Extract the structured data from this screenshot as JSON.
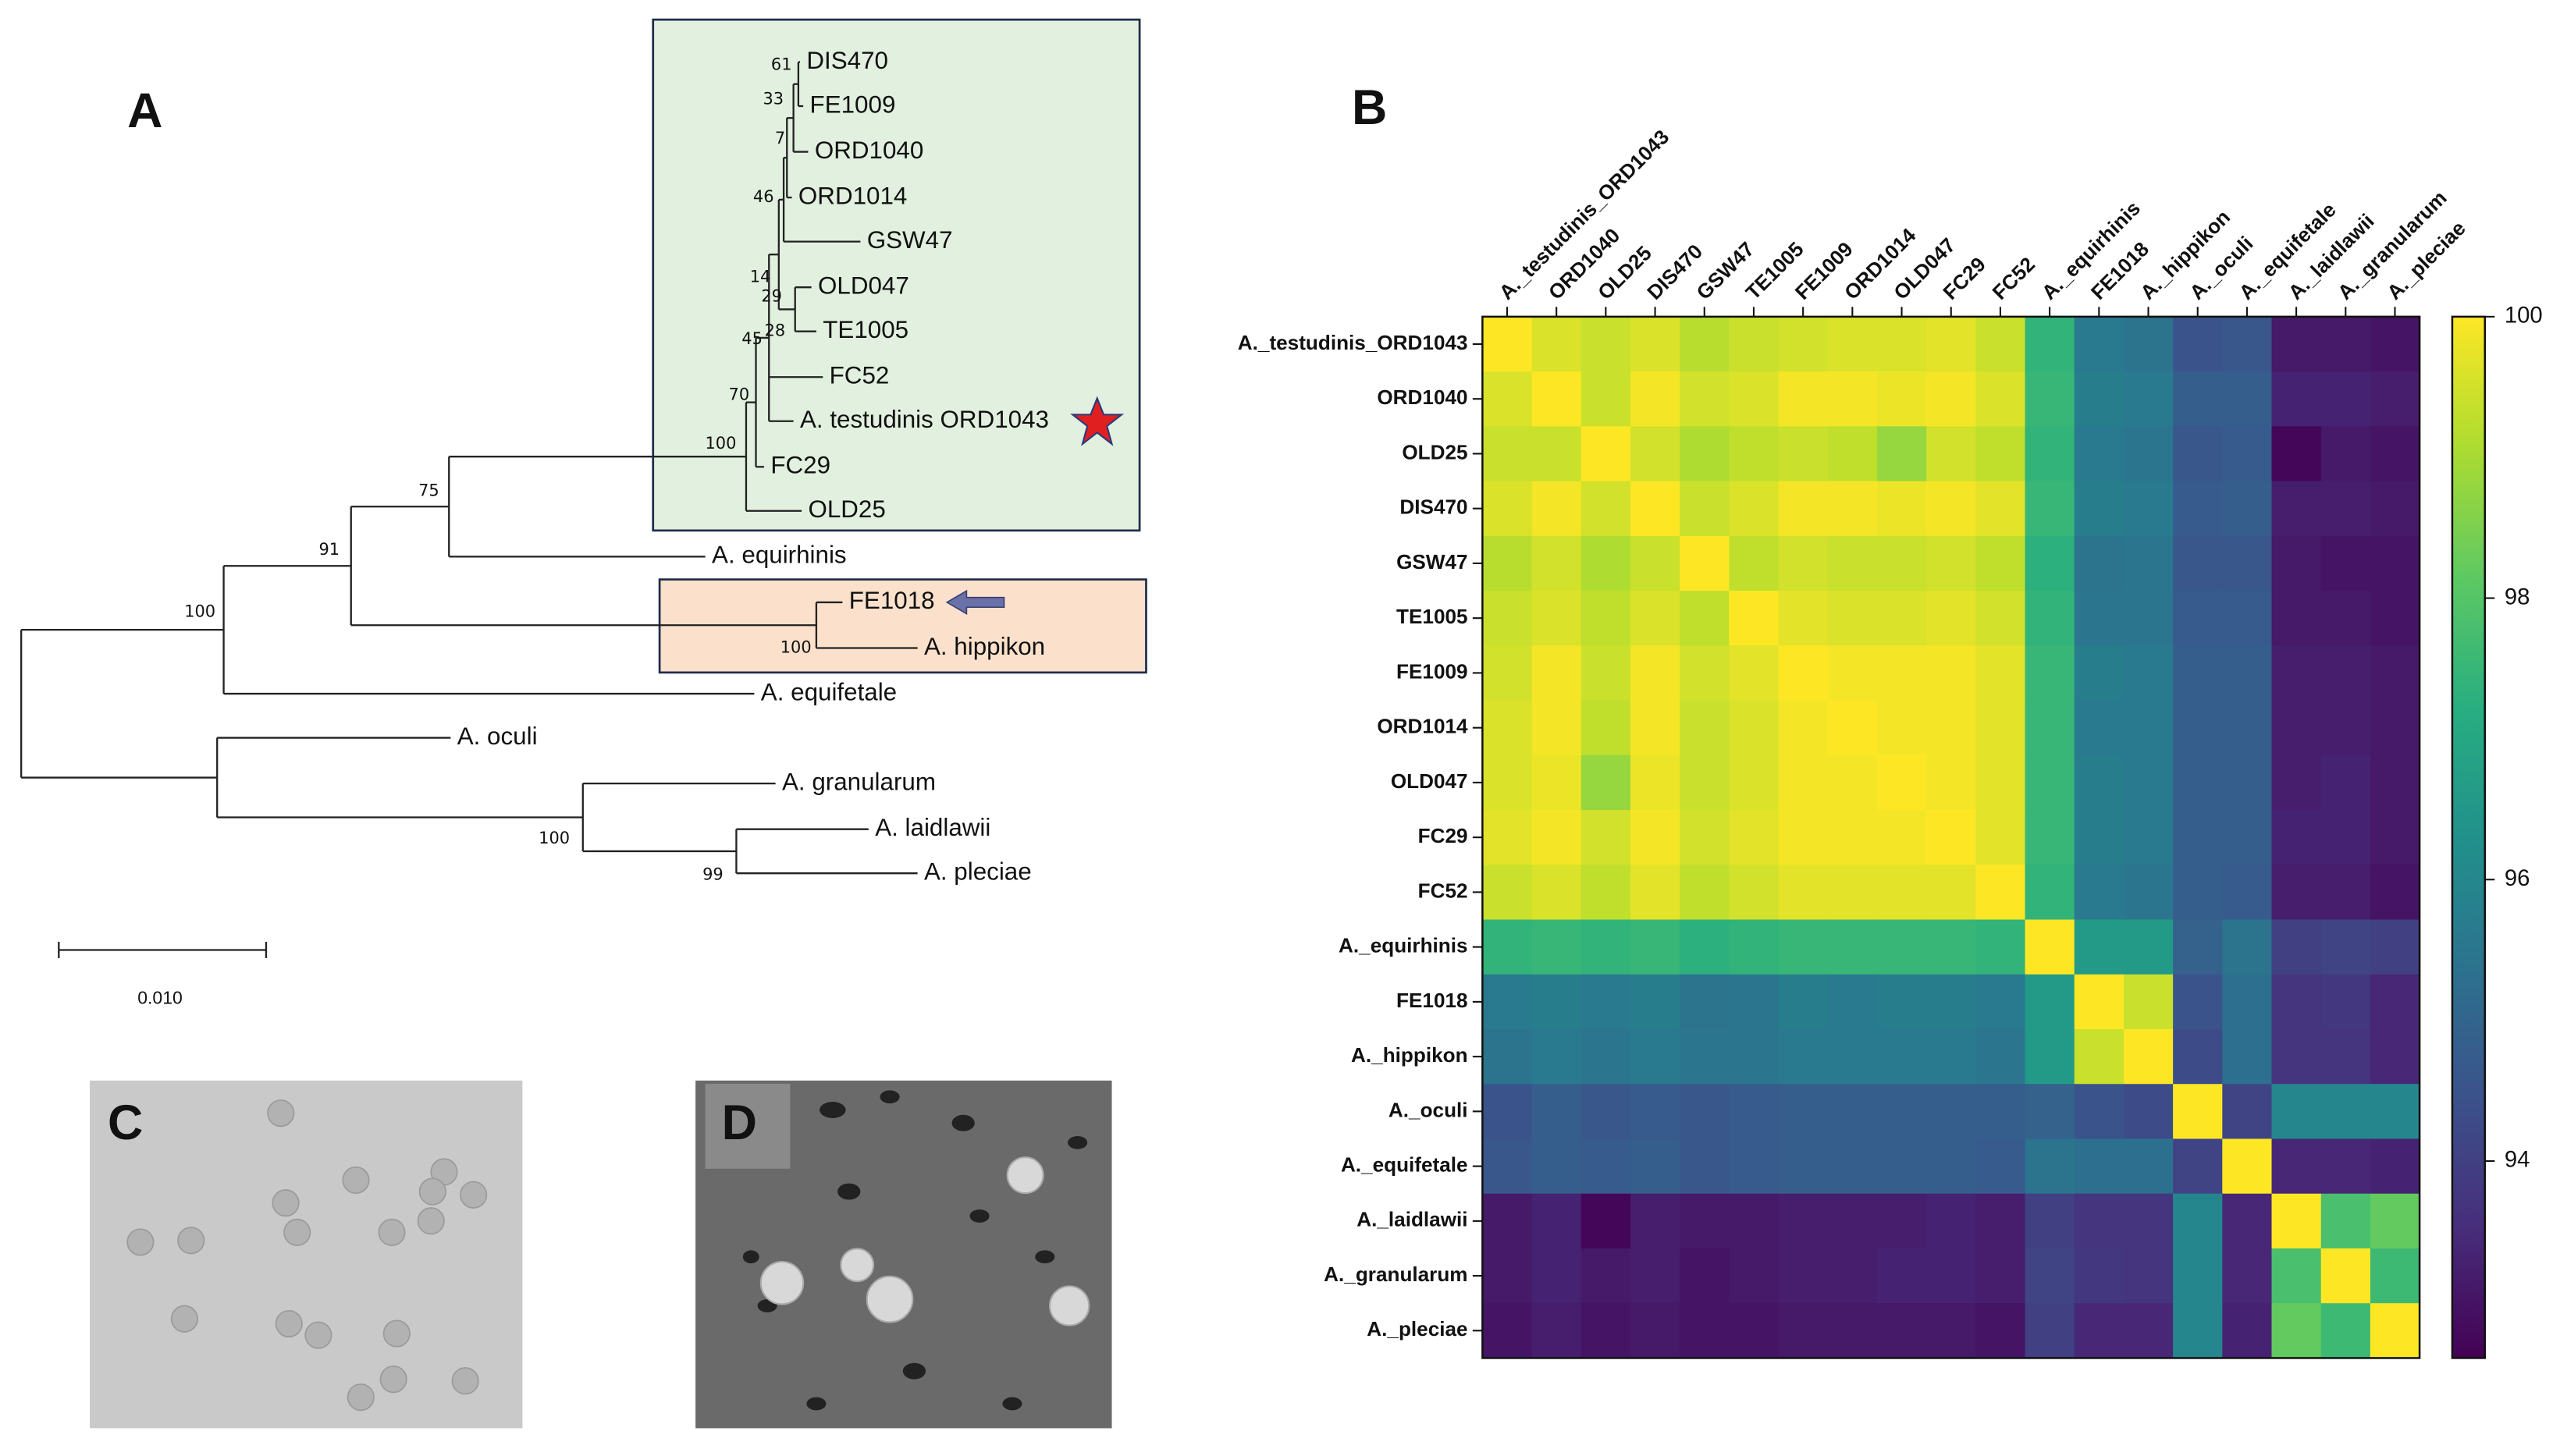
{
  "panel_labels": [
    "A",
    "B",
    "C",
    "D"
  ],
  "tree": {
    "leaves": [
      "DIS470",
      "FE1009",
      "ORD1040",
      "ORD1014",
      "GSW47",
      "OLD047",
      "TE1005",
      "FC52",
      "A. testudinis ORD1043",
      "FC29",
      "OLD25",
      "A. equirhinis",
      "FE1018",
      "A. hippikon",
      "A. equifetale",
      "A. oculi",
      "A. granularum",
      "A. laidlawii",
      "A. pleciae"
    ],
    "bootstrap": [
      61,
      33,
      7,
      46,
      14,
      29,
      28,
      45,
      70,
      100,
      75,
      91,
      100,
      100,
      100,
      99
    ],
    "scale_bar": "0.010"
  },
  "chart_data": {
    "type": "heatmap",
    "rows": [
      "A._testudinis_ORD1043",
      "ORD1040",
      "OLD25",
      "DIS470",
      "GSW47",
      "TE1005",
      "FE1009",
      "ORD1014",
      "OLD047",
      "FC29",
      "FC52",
      "A._equirhinis",
      "FE1018",
      "A._hippikon",
      "A._oculi",
      "A._equifetale",
      "A._laidlawii",
      "A._granularum",
      "A._pleciae"
    ],
    "columns": [
      "A._testudinis_ORD1043",
      "ORD1040",
      "OLD25",
      "DIS470",
      "GSW47",
      "TE1005",
      "FE1009",
      "ORD1014",
      "OLD047",
      "FC29",
      "FC52",
      "A._equirhinis",
      "FE1018",
      "A._hippikon",
      "A._oculi",
      "A._equifetale",
      "A._laidlawii",
      "A._granularum",
      "A._pleciae"
    ],
    "values": [
      [
        100,
        99.6,
        99.4,
        99.6,
        99.2,
        99.4,
        99.5,
        99.6,
        99.6,
        99.7,
        99.4,
        97.4,
        95.6,
        95.4,
        94.5,
        94.6,
        93.1,
        93.1,
        93.0
      ],
      [
        99.6,
        100,
        99.4,
        99.9,
        99.5,
        99.6,
        99.9,
        99.9,
        99.8,
        99.9,
        99.6,
        97.5,
        95.7,
        95.6,
        94.8,
        94.8,
        93.3,
        93.3,
        93.2
      ],
      [
        99.4,
        99.4,
        100,
        99.5,
        99.1,
        99.3,
        99.4,
        99.3,
        98.8,
        99.5,
        99.3,
        97.4,
        95.6,
        95.5,
        94.6,
        94.7,
        92.7,
        93.1,
        93.0
      ],
      [
        99.6,
        99.9,
        99.5,
        100,
        99.4,
        99.6,
        99.9,
        99.9,
        99.8,
        99.9,
        99.7,
        97.5,
        95.7,
        95.6,
        94.7,
        94.8,
        93.2,
        93.2,
        93.1
      ],
      [
        99.2,
        99.5,
        99.1,
        99.4,
        100,
        99.3,
        99.5,
        99.4,
        99.4,
        99.5,
        99.3,
        97.3,
        95.4,
        95.5,
        94.6,
        94.6,
        93.1,
        93.0,
        93.0
      ],
      [
        99.4,
        99.6,
        99.3,
        99.6,
        99.3,
        100,
        99.7,
        99.6,
        99.6,
        99.7,
        99.5,
        97.4,
        95.5,
        95.5,
        94.7,
        94.7,
        93.1,
        93.1,
        93.0
      ],
      [
        99.5,
        99.9,
        99.4,
        99.9,
        99.5,
        99.7,
        100,
        99.9,
        99.9,
        99.9,
        99.7,
        97.5,
        95.7,
        95.6,
        94.8,
        94.8,
        93.2,
        93.2,
        93.1
      ],
      [
        99.6,
        99.9,
        99.3,
        99.9,
        99.4,
        99.6,
        99.9,
        100,
        99.9,
        99.9,
        99.7,
        97.5,
        95.6,
        95.6,
        94.8,
        94.8,
        93.2,
        93.2,
        93.1
      ],
      [
        99.6,
        99.8,
        98.8,
        99.8,
        99.4,
        99.6,
        99.9,
        99.9,
        100,
        99.9,
        99.7,
        97.5,
        95.7,
        95.6,
        94.8,
        94.8,
        93.2,
        93.3,
        93.1
      ],
      [
        99.7,
        99.9,
        99.5,
        99.9,
        99.5,
        99.7,
        99.9,
        99.9,
        99.9,
        100,
        99.7,
        97.5,
        95.7,
        95.6,
        94.8,
        94.8,
        93.3,
        93.3,
        93.1
      ],
      [
        99.4,
        99.6,
        99.3,
        99.7,
        99.3,
        99.5,
        99.7,
        99.7,
        99.7,
        99.7,
        100,
        97.4,
        95.6,
        95.5,
        94.8,
        94.7,
        93.2,
        93.2,
        93.0
      ],
      [
        97.4,
        97.5,
        97.4,
        97.5,
        97.3,
        97.4,
        97.5,
        97.5,
        97.5,
        97.5,
        97.4,
        100,
        96.6,
        96.6,
        94.9,
        95.4,
        94.0,
        94.1,
        94.0
      ],
      [
        95.6,
        95.7,
        95.6,
        95.7,
        95.4,
        95.5,
        95.7,
        95.6,
        95.7,
        95.7,
        95.6,
        96.6,
        100,
        99.4,
        94.5,
        95.3,
        93.7,
        93.8,
        93.4
      ],
      [
        95.4,
        95.6,
        95.5,
        95.6,
        95.5,
        95.5,
        95.6,
        95.6,
        95.6,
        95.6,
        95.5,
        96.6,
        99.4,
        100,
        94.3,
        95.3,
        93.7,
        93.7,
        93.4
      ],
      [
        94.5,
        94.8,
        94.6,
        94.7,
        94.6,
        94.7,
        94.8,
        94.8,
        94.8,
        94.8,
        94.8,
        94.9,
        94.5,
        94.3,
        100,
        94.1,
        96.0,
        96.0,
        96.0
      ],
      [
        94.6,
        94.8,
        94.7,
        94.8,
        94.6,
        94.7,
        94.8,
        94.8,
        94.8,
        94.8,
        94.7,
        95.4,
        95.3,
        95.3,
        94.1,
        100,
        93.4,
        93.4,
        93.3
      ],
      [
        93.1,
        93.3,
        92.7,
        93.2,
        93.1,
        93.1,
        93.2,
        93.2,
        93.2,
        93.3,
        93.2,
        94.0,
        93.7,
        93.7,
        96.0,
        93.4,
        100,
        97.8,
        98.2
      ],
      [
        93.1,
        93.3,
        93.1,
        93.2,
        93.0,
        93.1,
        93.2,
        93.2,
        93.3,
        93.3,
        93.2,
        94.1,
        93.8,
        93.7,
        96.0,
        93.4,
        97.8,
        100,
        97.6
      ],
      [
        93.0,
        93.2,
        93.0,
        93.1,
        93.0,
        93.0,
        93.1,
        93.1,
        93.1,
        93.1,
        93.0,
        94.0,
        93.4,
        93.4,
        96.0,
        93.3,
        98.2,
        97.6,
        100
      ]
    ],
    "colormap": "viridis",
    "clim": [
      92.6,
      100
    ],
    "cticks": [
      94,
      96,
      98,
      100
    ]
  }
}
